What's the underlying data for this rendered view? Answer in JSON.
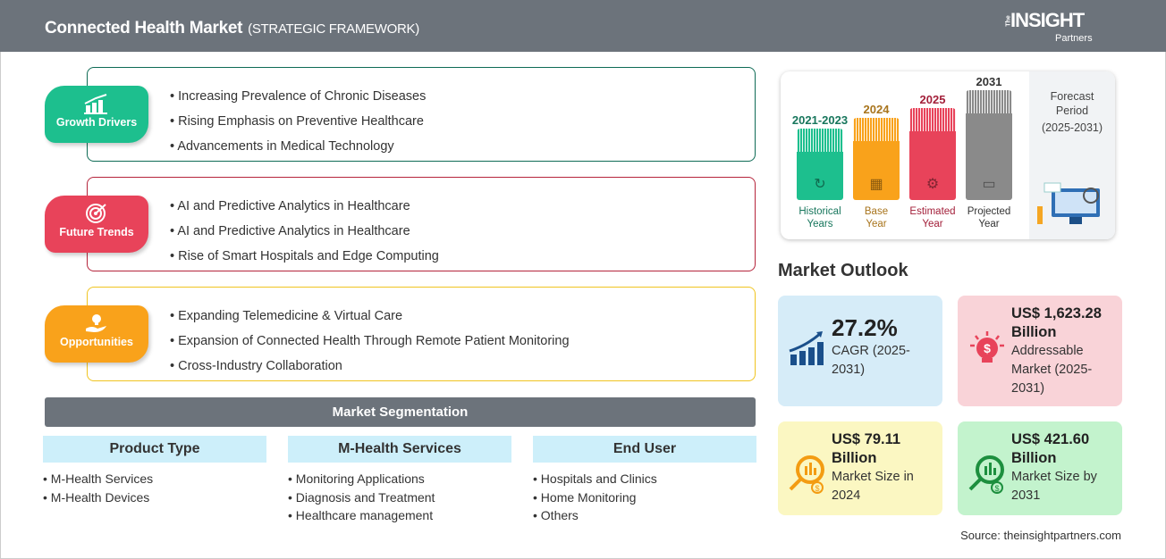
{
  "header": {
    "title": "Connected Health Market",
    "subtitle": "(STRATEGIC FRAMEWORK)",
    "logo": {
      "the": "The",
      "name": "INSIGHT",
      "partners": "Partners"
    }
  },
  "sections": [
    {
      "label": "Growth Drivers",
      "color": "#1dbf8e",
      "border": "#0e6b55",
      "icon": "bar-chart-growth-icon",
      "items": [
        "Increasing Prevalence of Chronic Diseases",
        "Rising Emphasis on Preventive Healthcare",
        "Advancements in Medical Technology"
      ]
    },
    {
      "label": "Future Trends",
      "color": "#e8435a",
      "border": "#b5243b",
      "icon": "target-icon",
      "items": [
        "AI and Predictive Analytics in Healthcare",
        "AI and Predictive Analytics in Healthcare",
        "Rise of Smart Hospitals and Edge Computing"
      ]
    },
    {
      "label": "Opportunities",
      "color": "#f9a21b",
      "border": "#f0c420",
      "icon": "lightbulb-hand-icon",
      "items": [
        "Expanding Telemedicine & Virtual Care",
        "Expansion of Connected Health Through Remote Patient Monitoring",
        "Cross-Industry Collaboration"
      ]
    }
  ],
  "segmentation": {
    "title": "Market Segmentation",
    "columns": [
      {
        "header": "Product Type",
        "items": [
          "M-Health Services",
          "M-Health Devices"
        ]
      },
      {
        "header": "M-Health Services",
        "items": [
          "Monitoring Applications",
          "Diagnosis and Treatment",
          "Healthcare management"
        ]
      },
      {
        "header": "End User",
        "items": [
          "Hospitals and Clinics",
          "Home Monitoring",
          "Others"
        ]
      }
    ]
  },
  "timeline": {
    "periods": [
      {
        "year": "2021-2023",
        "label1": "Historical",
        "label2": "Years",
        "color": "#1dbf8e",
        "text": "#17765c",
        "icon": "history-clock-icon"
      },
      {
        "year": "2024",
        "label1": "Base",
        "label2": "Year",
        "color": "#f9a21b",
        "text": "#a8741c",
        "icon": "calendar-icon"
      },
      {
        "year": "2025",
        "label1": "Estimated",
        "label2": "Year",
        "color": "#e8435a",
        "text": "#a3203a",
        "icon": "analytics-gear-icon"
      },
      {
        "year": "2031",
        "label1": "Projected",
        "label2": "Year",
        "color": "#8a8a8a",
        "text": "#333333",
        "icon": "presentation-chart-icon"
      }
    ],
    "forecast": {
      "l1": "Forecast",
      "l2": "Period",
      "l3": "(2025-2031)"
    }
  },
  "outlook": {
    "title": "Market Outlook",
    "cards": [
      {
        "value": "27.2%",
        "desc": "CAGR (2025-2031)",
        "bg": "#d6ecf8",
        "icon": "growth-chart-icon"
      },
      {
        "value": "US$ 1,623.28 Billion",
        "desc": "Addressable Market (2025-2031)",
        "bg": "#f9d3d8",
        "icon": "dollar-bulb-icon"
      },
      {
        "value": "US$ 79.11 Billion",
        "desc": "Market Size in 2024",
        "bg": "#fbf7c2",
        "icon": "magnifier-dollar-icon"
      },
      {
        "value": "US$ 421.60 Billion",
        "desc": "Market Size by 2031",
        "bg": "#c3f3cd",
        "icon": "magnifier-dollar-icon"
      }
    ]
  },
  "source": "Source: theinsightpartners.com"
}
